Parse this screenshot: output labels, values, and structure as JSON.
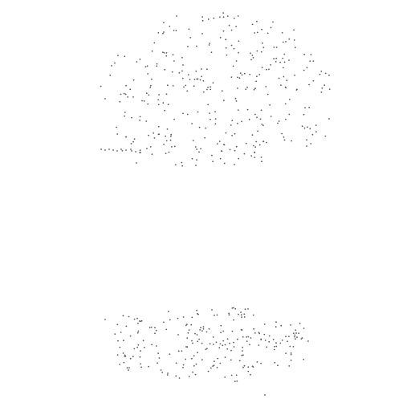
{
  "colors": {
    "background": "#ffffff",
    "dot": "#5a5a5a"
  },
  "clusters": [
    {
      "name": "upper-point-cluster"
    },
    {
      "name": "lower-point-cluster"
    }
  ]
}
